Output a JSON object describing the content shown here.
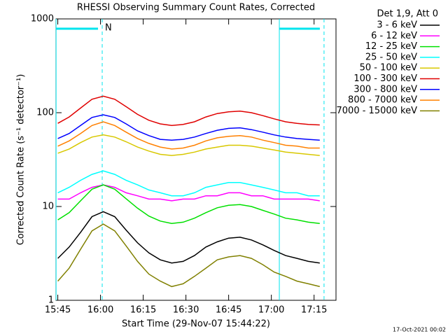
{
  "chart_data": {
    "type": "line",
    "title": "RHESSI Observing Summary Count Rates, Corrected",
    "x_label": "Start Time (29-Nov-07 15:44:22)",
    "y_label": "Corrected Count Rate (s⁻¹ detector⁻¹)",
    "legend_title": "Det 1,9, Att 0",
    "timestamp": "17-Oct-2021 00:02",
    "log_y": true,
    "xlim": [
      944.37,
      1042.7
    ],
    "ylim": [
      1,
      1000
    ],
    "xticks": [
      {
        "value": 945,
        "label": "15:45"
      },
      {
        "value": 960,
        "label": "16:00"
      },
      {
        "value": 975,
        "label": "16:15"
      },
      {
        "value": 990,
        "label": "16:30"
      },
      {
        "value": 1005,
        "label": "16:45"
      },
      {
        "value": 1020,
        "label": "17:00"
      },
      {
        "value": 1035,
        "label": "17:15"
      }
    ],
    "yticks": [
      1,
      10,
      100,
      1000
    ],
    "flags": [
      {
        "start": 944.4,
        "end": 960.6,
        "label": "N",
        "color": "#00e5ee"
      },
      {
        "start": 1022.8,
        "end": 1038.5,
        "color": "#00e5ee"
      }
    ],
    "x": [
      945,
      949,
      953,
      957,
      961,
      965,
      969,
      973,
      977,
      981,
      985,
      989,
      993,
      997,
      1001,
      1005,
      1009,
      1013,
      1017,
      1021,
      1025,
      1029,
      1033,
      1037
    ],
    "series": [
      {
        "name": "3 - 6 keV",
        "color": "#000000",
        "values": [
          2.8,
          3.7,
          5.3,
          7.8,
          8.8,
          7.8,
          5.6,
          4.1,
          3.2,
          2.7,
          2.5,
          2.6,
          3,
          3.7,
          4.2,
          4.6,
          4.7,
          4.4,
          3.9,
          3.4,
          3,
          2.8,
          2.6,
          2.5
        ]
      },
      {
        "name": "6 - 12 keV",
        "color": "#ff00ff",
        "values": [
          12,
          12,
          14,
          16,
          17,
          16,
          14,
          13,
          12,
          12,
          11.5,
          12,
          12,
          13,
          13,
          14,
          14,
          13,
          13,
          12,
          12,
          12,
          12,
          11.5
        ]
      },
      {
        "name": "12 - 25 keV",
        "color": "#00e000",
        "values": [
          7.2,
          8.6,
          11.5,
          15.3,
          17,
          15.3,
          12.1,
          9.6,
          7.9,
          7,
          6.6,
          6.8,
          7.5,
          8.6,
          9.7,
          10.3,
          10.5,
          10,
          9.1,
          8.3,
          7.5,
          7.2,
          6.8,
          6.6
        ]
      },
      {
        "name": "25 - 50 keV",
        "color": "#00ffff",
        "values": [
          14,
          16,
          19,
          22,
          24,
          22,
          19,
          17,
          15,
          14,
          13,
          13,
          14,
          16,
          17,
          18,
          18,
          17,
          16,
          15,
          14,
          14,
          13,
          13
        ]
      },
      {
        "name": "50 - 100 keV",
        "color": "#d8c800",
        "values": [
          37,
          41,
          48,
          55,
          58,
          55,
          49,
          43,
          39,
          36,
          35,
          36,
          38,
          41,
          43,
          45,
          45,
          44,
          42,
          40,
          38,
          37,
          36,
          35
        ]
      },
      {
        "name": "100 - 300 keV",
        "color": "#e00000",
        "values": [
          77,
          90,
          112,
          139,
          150,
          139,
          116,
          96,
          83,
          76,
          73,
          75,
          80,
          90,
          98,
          102,
          104,
          100,
          93,
          86,
          80,
          77,
          75,
          74
        ]
      },
      {
        "name": "300 - 800 keV",
        "color": "#0000ff",
        "values": [
          53,
          60,
          73,
          89,
          95,
          89,
          76,
          64,
          57,
          52,
          51,
          52,
          55,
          60,
          65,
          68,
          69,
          66,
          62,
          58,
          55,
          53,
          52,
          51
        ]
      },
      {
        "name": "800 - 7000 keV",
        "color": "#ff8000",
        "values": [
          44,
          50,
          60,
          73,
          80,
          73,
          62,
          53,
          47,
          43,
          41,
          42,
          45,
          50,
          54,
          56,
          57,
          55,
          51,
          48,
          45,
          44,
          42,
          42
        ]
      },
      {
        "name": "7000 - 15000 keV",
        "color": "#808000",
        "values": [
          1.6,
          2.2,
          3.5,
          5.5,
          6.5,
          5.5,
          3.8,
          2.6,
          1.9,
          1.6,
          1.4,
          1.5,
          1.8,
          2.2,
          2.7,
          2.9,
          3,
          2.8,
          2.4,
          2,
          1.8,
          1.6,
          1.5,
          1.4
        ]
      }
    ]
  }
}
